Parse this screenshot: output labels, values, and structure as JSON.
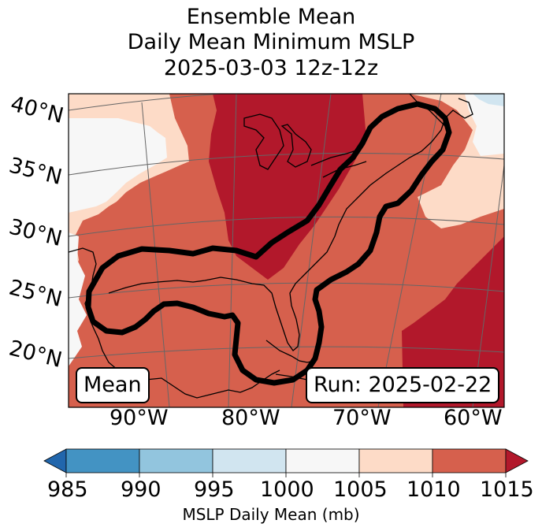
{
  "title": {
    "line1": "Ensemble Mean",
    "line2": "Daily Mean Minimum MSLP",
    "line3": "2025-03-03 12z-12z"
  },
  "lat_labels": [
    "40°N",
    "35°N",
    "30°N",
    "25°N",
    "20°N"
  ],
  "lon_labels": [
    "90°W",
    "80°W",
    "70°W",
    "60°W"
  ],
  "left_box": "Mean",
  "right_box": "Run: 2025-02-22",
  "colorbar": {
    "bounds": [
      "985",
      "990",
      "995",
      "1000",
      "1005",
      "1010",
      "1015"
    ],
    "units_label": "MSLP Daily Mean (mb)",
    "colors": {
      "under": "#2166ac",
      "b985_990": "#4393c3",
      "b990_995": "#92c5de",
      "b995_1000": "#d1e5f0",
      "b1000_1005": "#f7f7f7",
      "b1005_1010": "#fddbc7",
      "b1010_1015": "#d6604d",
      "over": "#b2182b"
    }
  }
}
